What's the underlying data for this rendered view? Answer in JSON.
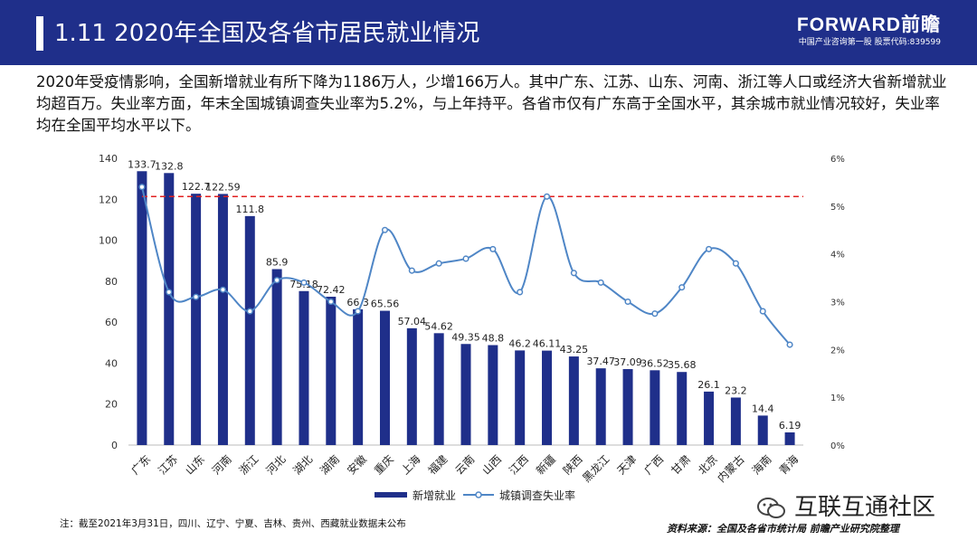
{
  "header": {
    "title": "1.11  2020年全国及各省市居民就业情况",
    "brand_logo": "FORWARD前瞻",
    "brand_sub": "中国产业咨询第一股 股票代码:839599"
  },
  "description": "2020年受疫情影响，全国新增就业有所下降为1186万人，少增166万人。其中广东、江苏、山东、河南、浙江等人口或经济大省新增就业均超百万。失业率方面，年末全国城镇调查失业率为5.2%，与上年持平。各省市仅有广东高于全国水平，其余城市就业情况较好，失业率均在全国平均水平以下。",
  "footer": {
    "note": "注：截至2021年3月31日，四川、辽宁、宁夏、吉林、贵州、西藏就业数据未公布",
    "source": "资料来源：全国及各省市统计局 前瞻产业研究院整理",
    "wechat": "互联互通社区"
  },
  "colors": {
    "header_bg": "#1f2f8a",
    "bar": "#1f2f8a",
    "line": "#4f86c6",
    "ref_line": "#e02020"
  },
  "chart_data": {
    "type": "bar",
    "categories": [
      "广东",
      "江苏",
      "山东",
      "河南",
      "浙江",
      "河北",
      "湖北",
      "湖南",
      "安徽",
      "重庆",
      "上海",
      "福建",
      "云南",
      "山西",
      "江西",
      "新疆",
      "陕西",
      "黑龙江",
      "天津",
      "广西",
      "甘肃",
      "北京",
      "内蒙古",
      "海南",
      "青海"
    ],
    "series": [
      {
        "name": "新增就业",
        "type": "bar",
        "axis": "left",
        "values": [
          133.7,
          132.8,
          122.7,
          122.59,
          111.8,
          85.9,
          75.18,
          72.42,
          66.3,
          65.56,
          57.04,
          54.62,
          49.35,
          48.8,
          46.2,
          46.11,
          43.25,
          37.47,
          37.09,
          36.52,
          35.68,
          26.1,
          23.2,
          14.4,
          6.19
        ],
        "labels": [
          "133.7",
          "132.8",
          "122.7",
          "122.59",
          "111.8",
          "85.9",
          "75.18",
          "72.42",
          "66.3",
          "65.56",
          "57.04",
          "54.62",
          "49.35",
          "48.8",
          "46.2",
          "46.11",
          "43.25",
          "37.47",
          "37.09",
          "36.52",
          "35.68",
          "26.1",
          "23.2",
          "14.4",
          "6.19"
        ]
      },
      {
        "name": "城镇调查失业率",
        "type": "line",
        "axis": "right",
        "smooth": true,
        "values": [
          5.4,
          3.2,
          3.1,
          3.25,
          2.8,
          3.45,
          3.4,
          3.0,
          2.8,
          4.5,
          3.65,
          3.8,
          3.9,
          4.1,
          3.2,
          5.2,
          3.6,
          3.4,
          3.0,
          2.75,
          3.3,
          4.1,
          3.8,
          2.8,
          2.1
        ]
      }
    ],
    "reference_line": {
      "axis": "right",
      "value": 5.2,
      "style": "dashed"
    },
    "y_left": {
      "min": 0,
      "max": 140,
      "ticks": [
        "0",
        "20",
        "40",
        "60",
        "80",
        "100",
        "120",
        "140"
      ]
    },
    "y_right": {
      "min": 0,
      "max": 6,
      "ticks": [
        "0%",
        "1%",
        "2%",
        "3%",
        "4%",
        "5%",
        "6%"
      ]
    },
    "legend_position": "bottom"
  }
}
